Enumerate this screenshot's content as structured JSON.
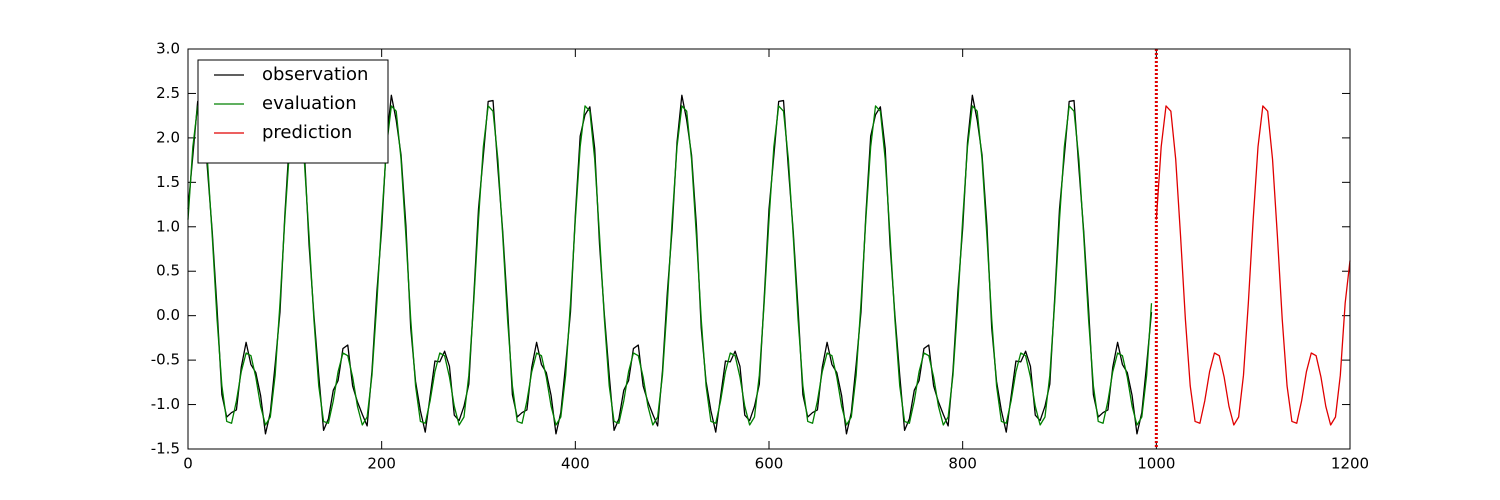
{
  "chart_data": {
    "type": "line",
    "xlim": [
      0,
      1200
    ],
    "xticks": [
      0,
      200,
      400,
      600,
      800,
      1000,
      1200
    ],
    "ylim": [
      -1.5,
      3.0
    ],
    "yticks": [
      {
        "value": -1.5,
        "label": "-1.5"
      },
      {
        "value": -1.0,
        "label": "-1.0"
      },
      -0.5,
      {
        "value": 0.0,
        "label": "0.0"
      },
      0.5,
      {
        "value": 1.0,
        "label": "1.0"
      },
      1.5,
      {
        "value": 2.0,
        "label": "2.0"
      },
      2.5,
      {
        "value": 3.0,
        "label": "3.0"
      }
    ],
    "grid": false,
    "legend": "upper left",
    "vline": {
      "x": 1000,
      "color": "#e00000",
      "style": "dotted"
    },
    "series": [
      {
        "name": "observation",
        "color": "#000000",
        "x": [
          0,
          5,
          10,
          15,
          20,
          25,
          30,
          35,
          40,
          45,
          50,
          55,
          60,
          65,
          70,
          75,
          80,
          85,
          90,
          95,
          100,
          105,
          110,
          115,
          120,
          125,
          130,
          135,
          140,
          145,
          150,
          155,
          160,
          165,
          170,
          175,
          180,
          185,
          190,
          195,
          200,
          205,
          210,
          215,
          220,
          225,
          230,
          235,
          240,
          245,
          250,
          255,
          260,
          265,
          270,
          275,
          280,
          285,
          290,
          295,
          300,
          305,
          310,
          315,
          320,
          325,
          330,
          335,
          340,
          345,
          350,
          355,
          360,
          365,
          370,
          375,
          380,
          385,
          390,
          395,
          400,
          405,
          410,
          415,
          420,
          425,
          430,
          435,
          440,
          445,
          450,
          455,
          460,
          465,
          470,
          475,
          480,
          485,
          490,
          495,
          500,
          505,
          510,
          515,
          520,
          525,
          530,
          535,
          540,
          545,
          550,
          555,
          560,
          565,
          570,
          575,
          580,
          585,
          590,
          595,
          600,
          605,
          610,
          615,
          620,
          625,
          630,
          635,
          640,
          645,
          650,
          655,
          660,
          665,
          670,
          675,
          680,
          685,
          690,
          695,
          700,
          705,
          710,
          715,
          720,
          725,
          730,
          735,
          740,
          745,
          750,
          755,
          760,
          765,
          770,
          775,
          780,
          785,
          790,
          795,
          800,
          805,
          810,
          815,
          820,
          825,
          830,
          835,
          840,
          845,
          850,
          855,
          860,
          865,
          870,
          875,
          880,
          885,
          890,
          895,
          900,
          905,
          910,
          915,
          920,
          925,
          930,
          935,
          940,
          945,
          950,
          955,
          960,
          965,
          970,
          975,
          980,
          985,
          990,
          995
        ],
        "values": [
          1.2,
          1.8,
          2.41,
          2.42,
          1.66,
          0.95,
          0.08,
          -0.89,
          -1.14,
          -1.09,
          -1.06,
          -0.58,
          -0.3,
          -0.55,
          -0.64,
          -0.9,
          -1.33,
          -1.09,
          -0.55,
          0.04,
          1.13,
          2.02,
          2.26,
          2.35,
          1.88,
          0.8,
          0.01,
          -0.67,
          -1.29,
          -1.16,
          -0.84,
          -0.73,
          -0.37,
          -0.33,
          -0.79,
          -0.97,
          -1.11,
          -1.24,
          -0.62,
          0.26,
          0.98,
          1.95,
          2.48,
          2.2,
          1.81,
          1.02,
          -0.14,
          -0.74,
          -1.07,
          -1.31,
          -0.91,
          -0.51,
          -0.52,
          -0.4,
          -0.57,
          -1.12,
          -1.18,
          -1.02,
          -0.77,
          0.19,
          1.2,
          1.8,
          2.41,
          2.42,
          1.66,
          0.95,
          0.08,
          -0.89,
          -1.14,
          -1.09,
          -1.06,
          -0.58,
          -0.3,
          -0.55,
          -0.64,
          -0.9,
          -1.33,
          -1.09,
          -0.55,
          0.04,
          1.13,
          2.02,
          2.26,
          2.35,
          1.88,
          0.8,
          0.01,
          -0.67,
          -1.29,
          -1.16,
          -0.84,
          -0.73,
          -0.37,
          -0.33,
          -0.79,
          -0.97,
          -1.11,
          -1.24,
          -0.62,
          0.26,
          0.98,
          1.95,
          2.48,
          2.2,
          1.81,
          1.02,
          -0.14,
          -0.74,
          -1.07,
          -1.31,
          -0.91,
          -0.51,
          -0.52,
          -0.4,
          -0.57,
          -1.12,
          -1.18,
          -1.02,
          -0.77,
          0.19,
          1.2,
          1.8,
          2.41,
          2.42,
          1.66,
          0.95,
          0.08,
          -0.89,
          -1.14,
          -1.09,
          -1.06,
          -0.58,
          -0.3,
          -0.55,
          -0.64,
          -0.9,
          -1.33,
          -1.09,
          -0.55,
          0.04,
          1.13,
          2.02,
          2.26,
          2.35,
          1.88,
          0.8,
          0.01,
          -0.67,
          -1.29,
          -1.16,
          -0.84,
          -0.73,
          -0.37,
          -0.33,
          -0.79,
          -0.97,
          -1.11,
          -1.24,
          -0.62,
          0.26,
          0.98,
          1.95,
          2.48,
          2.2,
          1.81,
          1.02,
          -0.14,
          -0.74,
          -1.07,
          -1.31,
          -0.91,
          -0.51,
          -0.52,
          -0.4,
          -0.57,
          -1.12,
          -1.18,
          -1.02,
          -0.77,
          0.19,
          1.2,
          1.8,
          2.41,
          2.42,
          1.66,
          0.95,
          0.08,
          -0.89,
          -1.14,
          -1.09,
          -1.06,
          -0.58,
          -0.3,
          -0.55,
          -0.64,
          -0.9,
          -1.33,
          -1.09,
          -0.55,
          0.04
        ]
      },
      {
        "name": "evaluation",
        "color": "#008000",
        "x": [
          0,
          5,
          10,
          15,
          20,
          25,
          30,
          35,
          40,
          45,
          50,
          55,
          60,
          65,
          70,
          75,
          80,
          85,
          90,
          95,
          100,
          105,
          110,
          115,
          120,
          125,
          130,
          135,
          140,
          145,
          150,
          155,
          160,
          165,
          170,
          175,
          180,
          185,
          190,
          195,
          200,
          205,
          210,
          215,
          220,
          225,
          230,
          235,
          240,
          245,
          250,
          255,
          260,
          265,
          270,
          275,
          280,
          285,
          290,
          295,
          300,
          305,
          310,
          315,
          320,
          325,
          330,
          335,
          340,
          345,
          350,
          355,
          360,
          365,
          370,
          375,
          380,
          385,
          390,
          395,
          400,
          405,
          410,
          415,
          420,
          425,
          430,
          435,
          440,
          445,
          450,
          455,
          460,
          465,
          470,
          475,
          480,
          485,
          490,
          495,
          500,
          505,
          510,
          515,
          520,
          525,
          530,
          535,
          540,
          545,
          550,
          555,
          560,
          565,
          570,
          575,
          580,
          585,
          590,
          595,
          600,
          605,
          610,
          615,
          620,
          625,
          630,
          635,
          640,
          645,
          650,
          655,
          660,
          665,
          670,
          675,
          680,
          685,
          690,
          695,
          700,
          705,
          710,
          715,
          720,
          725,
          730,
          735,
          740,
          745,
          750,
          755,
          760,
          765,
          770,
          775,
          780,
          785,
          790,
          795,
          800,
          805,
          810,
          815,
          820,
          825,
          830,
          835,
          840,
          845,
          850,
          855,
          860,
          865,
          870,
          875,
          880,
          885,
          890,
          895,
          900,
          905,
          910,
          915,
          920,
          925,
          930,
          935,
          940,
          945,
          950,
          955,
          960,
          965,
          970,
          975,
          980,
          985,
          990,
          995
        ],
        "values": [
          1.08,
          1.9,
          2.36,
          2.3,
          1.76,
          0.9,
          -0.04,
          -0.79,
          -1.19,
          -1.21,
          -0.96,
          -0.63,
          -0.42,
          -0.45,
          -0.69,
          -1.02,
          -1.23,
          -1.14,
          -0.67,
          0.14,
          1.08,
          1.9,
          2.36,
          2.3,
          1.76,
          0.9,
          -0.04,
          -0.79,
          -1.19,
          -1.21,
          -0.96,
          -0.63,
          -0.42,
          -0.45,
          -0.69,
          -1.02,
          -1.23,
          -1.14,
          -0.67,
          0.14,
          1.08,
          1.9,
          2.36,
          2.3,
          1.76,
          0.9,
          -0.04,
          -0.79,
          -1.19,
          -1.21,
          -0.96,
          -0.63,
          -0.42,
          -0.45,
          -0.69,
          -1.02,
          -1.23,
          -1.14,
          -0.67,
          0.14,
          1.08,
          1.9,
          2.36,
          2.3,
          1.76,
          0.9,
          -0.04,
          -0.79,
          -1.19,
          -1.21,
          -0.96,
          -0.63,
          -0.42,
          -0.45,
          -0.69,
          -1.02,
          -1.23,
          -1.14,
          -0.67,
          0.14,
          1.08,
          1.9,
          2.36,
          2.3,
          1.76,
          0.9,
          -0.04,
          -0.79,
          -1.19,
          -1.21,
          -0.96,
          -0.63,
          -0.42,
          -0.45,
          -0.69,
          -1.02,
          -1.23,
          -1.14,
          -0.67,
          0.14,
          1.08,
          1.9,
          2.36,
          2.3,
          1.76,
          0.9,
          -0.04,
          -0.79,
          -1.19,
          -1.21,
          -0.96,
          -0.63,
          -0.42,
          -0.45,
          -0.69,
          -1.02,
          -1.23,
          -1.14,
          -0.67,
          0.14,
          1.08,
          1.9,
          2.36,
          2.3,
          1.76,
          0.9,
          -0.04,
          -0.79,
          -1.19,
          -1.21,
          -0.96,
          -0.63,
          -0.42,
          -0.45,
          -0.69,
          -1.02,
          -1.23,
          -1.14,
          -0.67,
          0.14,
          1.08,
          1.9,
          2.36,
          2.3,
          1.76,
          0.9,
          -0.04,
          -0.79,
          -1.19,
          -1.21,
          -0.96,
          -0.63,
          -0.42,
          -0.45,
          -0.69,
          -1.02,
          -1.23,
          -1.14,
          -0.67,
          0.14,
          1.08,
          1.9,
          2.36,
          2.3,
          1.76,
          0.9,
          -0.04,
          -0.79,
          -1.19,
          -1.21,
          -0.96,
          -0.63,
          -0.42,
          -0.45,
          -0.69,
          -1.02,
          -1.23,
          -1.14,
          -0.67,
          0.14,
          1.08,
          1.9,
          2.36,
          2.3,
          1.76,
          0.9,
          -0.04,
          -0.79,
          -1.19,
          -1.21,
          -0.96,
          -0.63,
          -0.42,
          -0.45,
          -0.69,
          -1.02,
          -1.23,
          -1.14,
          -0.67,
          0.14
        ]
      },
      {
        "name": "prediction",
        "color": "#e00000",
        "x": [
          1000,
          1005,
          1010,
          1015,
          1020,
          1025,
          1030,
          1035,
          1040,
          1045,
          1050,
          1055,
          1060,
          1065,
          1070,
          1075,
          1080,
          1085,
          1090,
          1095,
          1100,
          1105,
          1110,
          1115,
          1120,
          1125,
          1130,
          1135,
          1140,
          1145,
          1150,
          1155,
          1160,
          1165,
          1170,
          1175,
          1180,
          1185,
          1190,
          1195,
          1200
        ],
        "values": [
          1.08,
          1.9,
          2.36,
          2.3,
          1.76,
          0.9,
          -0.04,
          -0.79,
          -1.19,
          -1.21,
          -0.96,
          -0.63,
          -0.42,
          -0.45,
          -0.69,
          -1.02,
          -1.23,
          -1.14,
          -0.67,
          0.14,
          1.08,
          1.9,
          2.36,
          2.3,
          1.76,
          0.9,
          -0.04,
          -0.79,
          -1.19,
          -1.21,
          -0.96,
          -0.63,
          -0.42,
          -0.45,
          -0.69,
          -1.02,
          -1.23,
          -1.14,
          -0.67,
          0.14,
          0.62
        ]
      }
    ]
  }
}
